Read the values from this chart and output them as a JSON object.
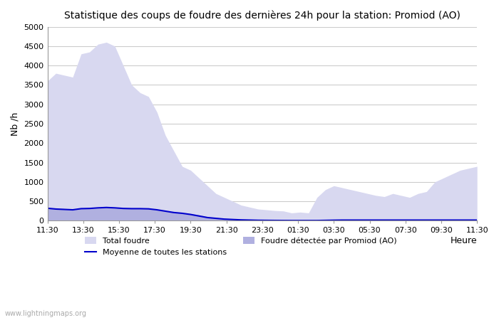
{
  "title": "Statistique des coups de foudre des dernières 24h pour la station: Promiod (AO)",
  "ylabel": "Nb /h",
  "xlabel_right": "Heure",
  "watermark": "www.lightningmaps.org",
  "ylim": [
    0,
    5000
  ],
  "yticks": [
    0,
    500,
    1000,
    1500,
    2000,
    2500,
    3000,
    3500,
    4000,
    4500,
    5000
  ],
  "xtick_labels": [
    "11:30",
    "13:30",
    "15:30",
    "17:30",
    "19:30",
    "21:30",
    "23:30",
    "01:30",
    "03:30",
    "05:30",
    "07:30",
    "09:30",
    "11:30"
  ],
  "background_color": "#ffffff",
  "grid_color": "#cccccc",
  "fill_total_color": "#d8d8f0",
  "fill_promiod_color": "#b0b0e0",
  "line_color": "#0000cc",
  "total_foudre": [
    3600,
    3800,
    3750,
    3700,
    4300,
    4350,
    4550,
    4600,
    4500,
    4000,
    3500,
    3300,
    3200,
    2800,
    2200,
    1800,
    1400,
    1300,
    1100,
    900,
    700,
    600,
    500,
    400,
    350,
    300,
    280,
    260,
    250,
    200,
    220,
    200,
    600,
    800,
    900,
    850,
    800,
    750,
    700,
    650,
    620,
    700,
    650,
    600,
    700,
    750,
    1000,
    1100,
    1200,
    1300,
    1350,
    1400
  ],
  "foudre_promiod": [
    300,
    320,
    310,
    290,
    310,
    310,
    320,
    330,
    320,
    315,
    310,
    310,
    305,
    280,
    250,
    220,
    200,
    180,
    150,
    100,
    80,
    60,
    50,
    40,
    30,
    20,
    15,
    10,
    10,
    5,
    5,
    5,
    5,
    10,
    15,
    20,
    20,
    20,
    20,
    20,
    20,
    20,
    20,
    20,
    20,
    20,
    20,
    20,
    20,
    20,
    20,
    20
  ],
  "moyenne_stations": [
    320,
    300,
    290,
    280,
    310,
    315,
    330,
    340,
    330,
    315,
    310,
    310,
    305,
    280,
    245,
    210,
    190,
    160,
    120,
    80,
    60,
    40,
    30,
    20,
    15,
    10,
    8,
    6,
    5,
    4,
    4,
    4,
    4,
    8,
    12,
    15,
    15,
    15,
    15,
    15,
    15,
    15,
    15,
    15,
    15,
    15,
    15,
    15,
    15,
    15,
    15,
    15
  ],
  "legend_total_label": "Total foudre",
  "legend_promiod_label": "Foudre détectée par Promiod (AO)",
  "legend_moyenne_label": "Moyenne de toutes les stations"
}
